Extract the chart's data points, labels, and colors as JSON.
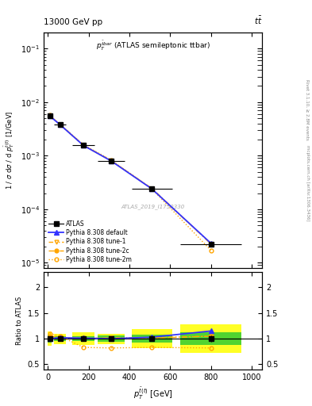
{
  "title_left": "13000 GeV pp",
  "title_right": "tt",
  "annotation": "ATLAS_2019_I1750330",
  "right_label1": "Rivet 3.1.10, ≥ 2.8M events",
  "right_label2": "mcplots.cern.ch [arXiv:1306.3436]",
  "xdata": [
    10,
    60,
    175,
    310,
    510,
    800
  ],
  "atlas_xerr": [
    10,
    30,
    55,
    65,
    100,
    150
  ],
  "atlas_y": [
    0.0055,
    0.0038,
    0.00155,
    0.0008,
    0.00024,
    2.2e-05
  ],
  "atlas_yerr": [
    0.00025,
    0.00015,
    6e-05,
    3e-05,
    1e-05,
    1.5e-06
  ],
  "py_default_y": [
    0.0055,
    0.0038,
    0.00155,
    0.0008,
    0.00024,
    2.3e-05
  ],
  "py_tune1_y": [
    0.0055,
    0.0038,
    0.00155,
    0.00081,
    0.000245,
    2.25e-05
  ],
  "py_tune2c_y": [
    0.0056,
    0.00385,
    0.00157,
    0.00081,
    0.000242,
    2.25e-05
  ],
  "py_tune2m_y": [
    0.0057,
    0.00385,
    0.0016,
    0.00083,
    0.00024,
    1.7e-05
  ],
  "ratio_default": [
    1.0,
    1.02,
    1.01,
    1.0,
    1.03,
    1.15
  ],
  "ratio_tune1": [
    1.02,
    1.02,
    1.0,
    1.02,
    1.02,
    1.05
  ],
  "ratio_tune2c": [
    1.05,
    1.03,
    1.01,
    1.01,
    1.01,
    1.05
  ],
  "ratio_tune2m": [
    1.1,
    1.05,
    0.83,
    0.82,
    0.83,
    0.82
  ],
  "green_err": [
    0.08,
    0.05,
    0.05,
    0.06,
    0.08,
    0.12
  ],
  "yellow_err": [
    0.14,
    0.1,
    0.12,
    0.1,
    0.18,
    0.28
  ],
  "atlas_ratio_yerr": [
    0.04,
    0.03,
    0.03,
    0.03,
    0.04,
    0.06
  ],
  "ylim_main": [
    8e-06,
    0.2
  ],
  "ylim_ratio": [
    0.4,
    2.3
  ],
  "yticks_ratio": [
    0.5,
    1.0,
    1.5,
    2.0
  ],
  "xlim": [
    -20,
    1050
  ],
  "color_blue": "#3333FF",
  "color_orange": "#FFA500",
  "color_green": "#33CC33",
  "color_yellow": "#FFFF00"
}
